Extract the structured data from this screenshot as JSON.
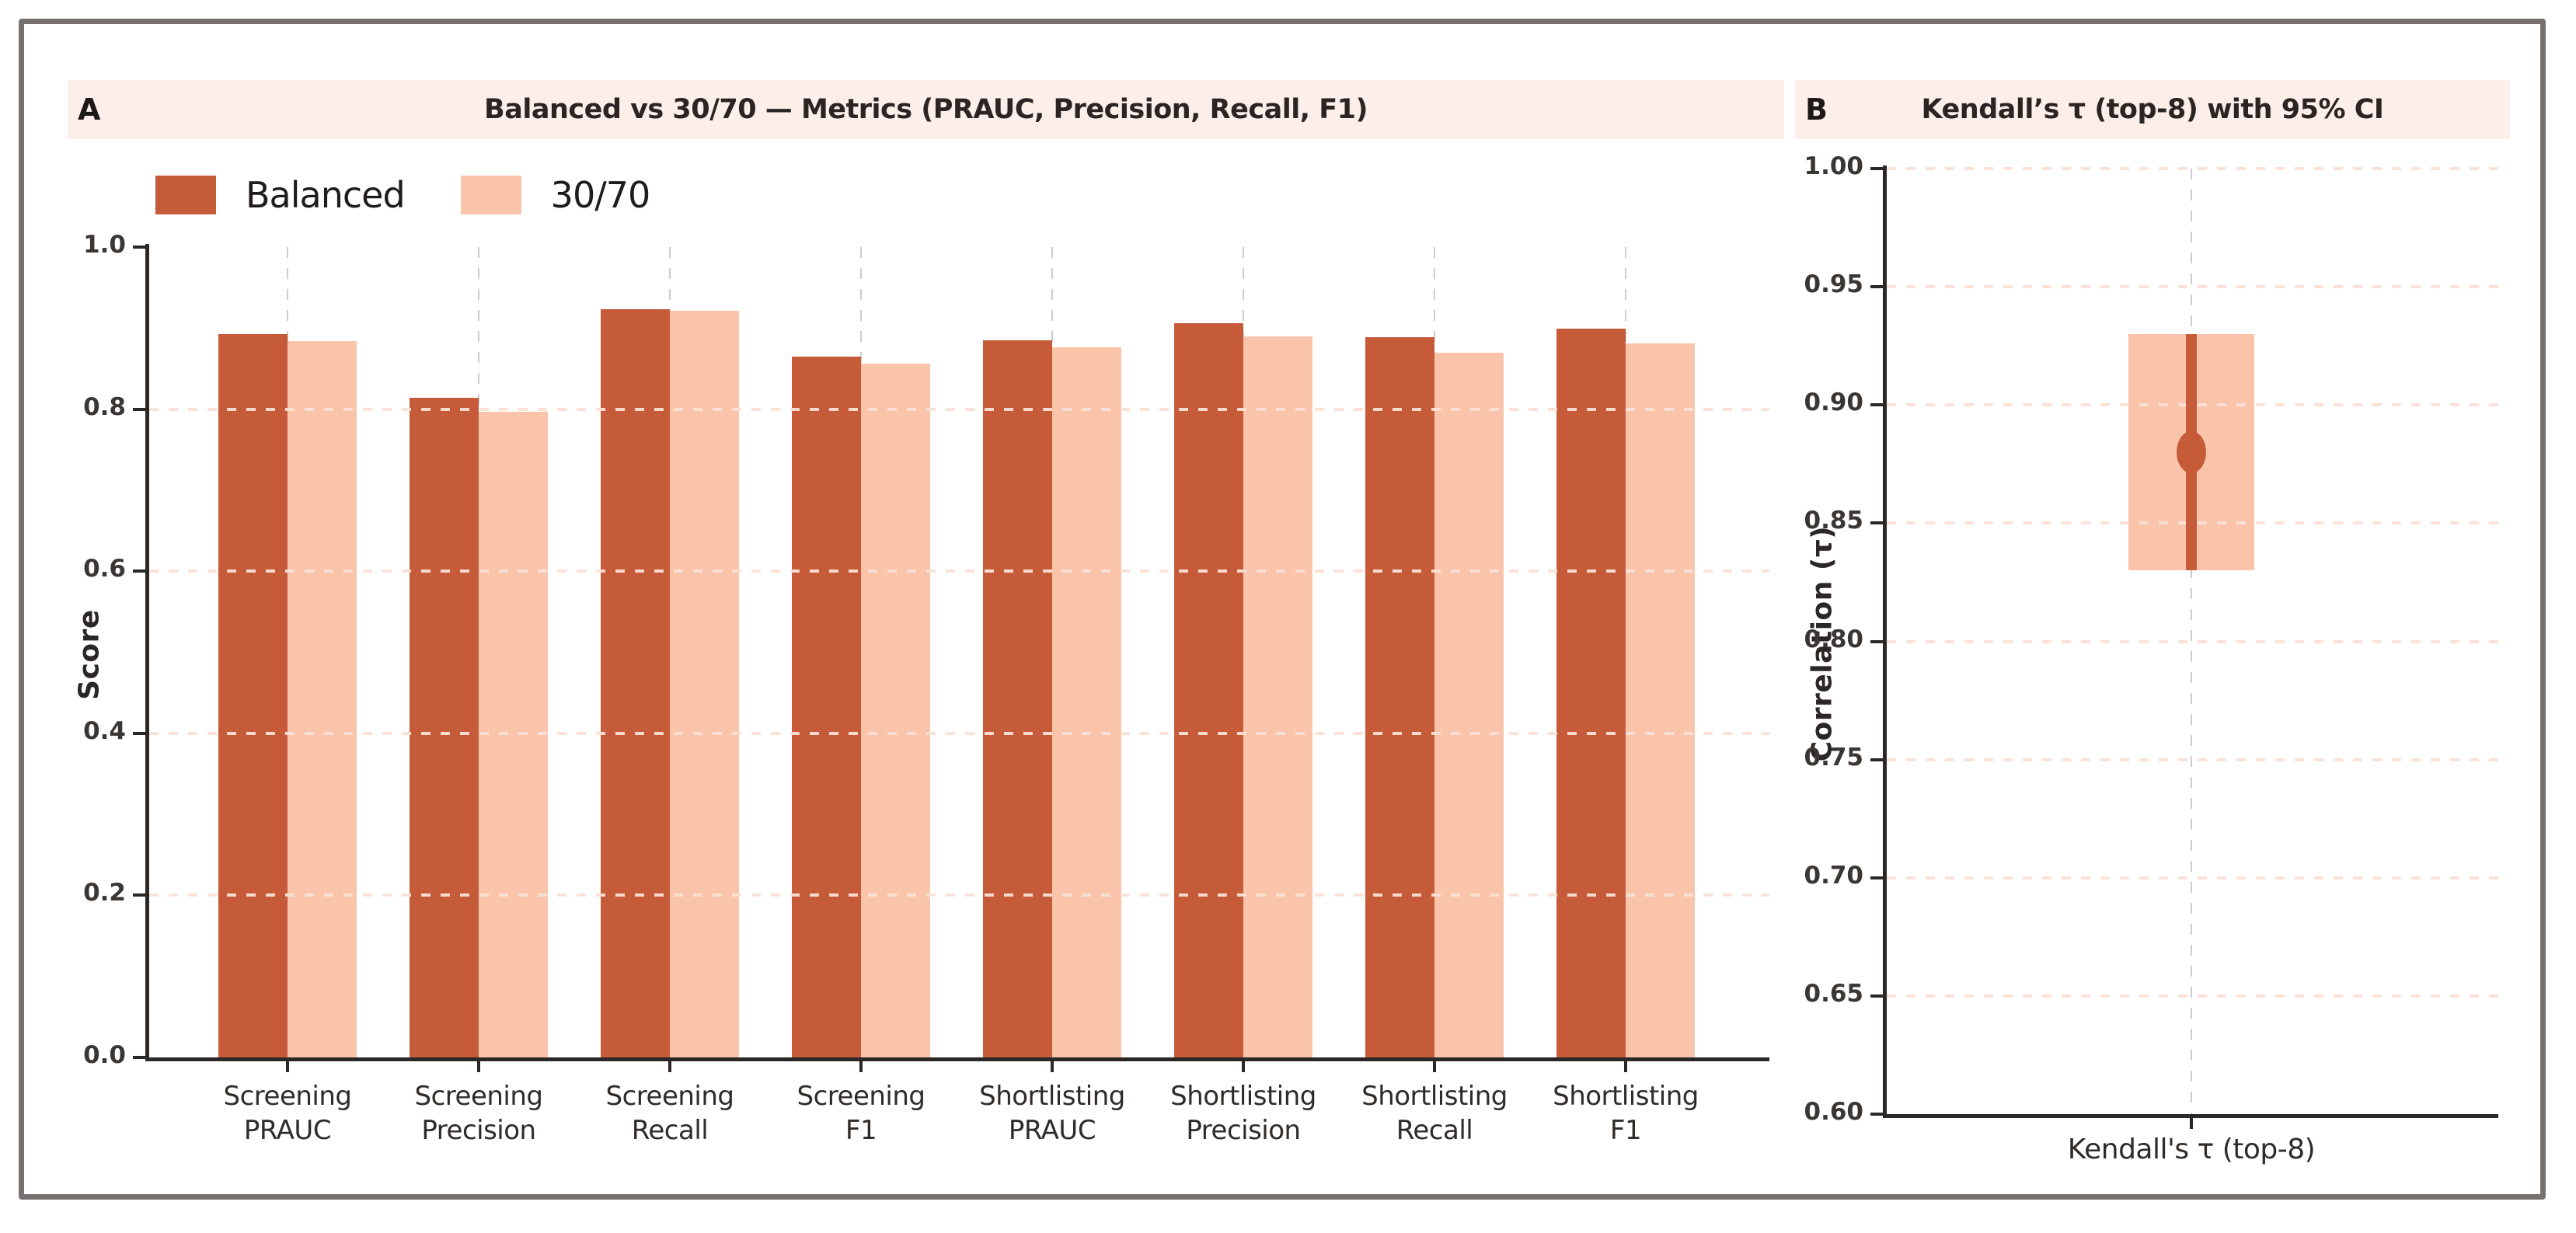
{
  "figure": {
    "background": "#ffffff",
    "frame_border_color": "#76716f",
    "banner_color": "#fcefe9"
  },
  "panels": {
    "a": {
      "label": "A",
      "title": "Balanced vs 30/70 — Metrics (PRAUC, Precision, Recall, F1)",
      "ylabel": "Score"
    },
    "b": {
      "label": "B",
      "title": "Kendall’s τ (top-8) with 95% CI",
      "ylabel": "Correlation (τ)",
      "xtick": "Kendall's τ (top-8)"
    }
  },
  "chart_data": [
    {
      "type": "bar",
      "panel": "A",
      "title": "Balanced vs 30/70 — Metrics (PRAUC, Precision, Recall, F1)",
      "xlabel": "",
      "ylabel": "Score",
      "ylim": [
        0.0,
        1.0
      ],
      "yticks": [
        0.0,
        0.2,
        0.4,
        0.6,
        0.8,
        1.0
      ],
      "grid": true,
      "legend_position": "top-left",
      "categories": [
        "Screening PRAUC",
        "Screening Precision",
        "Screening Recall",
        "Screening F1",
        "Shortlisting PRAUC",
        "Shortlisting Precision",
        "Shortlisting Recall",
        "Shortlisting F1"
      ],
      "series": [
        {
          "name": "Balanced",
          "color": "#c65b3a",
          "values": [
            0.893,
            0.814,
            0.923,
            0.865,
            0.885,
            0.906,
            0.889,
            0.899
          ]
        },
        {
          "name": "30/70",
          "color": "#f9c4aa",
          "values": [
            0.884,
            0.797,
            0.921,
            0.856,
            0.876,
            0.89,
            0.87,
            0.881
          ]
        }
      ]
    },
    {
      "type": "scatter",
      "panel": "B",
      "title": "Kendall’s τ (top-8) with 95% CI",
      "xlabel": "",
      "ylabel": "Correlation (τ)",
      "ylim": [
        0.6,
        1.0
      ],
      "yticks": [
        0.6,
        0.65,
        0.7,
        0.75,
        0.8,
        0.85,
        0.9,
        0.95,
        1.0
      ],
      "grid": true,
      "categories": [
        "Kendall's τ (top-8)"
      ],
      "values": [
        0.88
      ],
      "ci_low": [
        0.83
      ],
      "ci_high": [
        0.93
      ],
      "point_color": "#c65b3a",
      "band_color": "#f9c4aa"
    }
  ],
  "colors": {
    "balanced": "#c65b3a",
    "thirty_seventy": "#f9c4aa",
    "spine": "#2b2726",
    "grid_dashed": "#cfcccb",
    "grid_dotted": "#fae0d5",
    "tick_text": "#3a3634"
  }
}
